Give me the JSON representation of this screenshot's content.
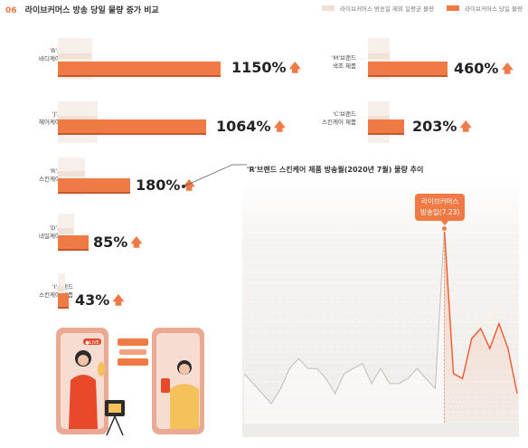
{
  "header": {
    "number": "06",
    "title": "라이브커머스 방송 당일 물량 증가 비교"
  },
  "legend": {
    "prev_label": "라이브커머스 방송일 제외 일평균 물량",
    "cur_label": "라이브커머스 당일 물량",
    "prev_color": "#f0e0d6",
    "cur_color": "#ef7a45"
  },
  "chart_data": [
    {
      "type": "bar",
      "categories": [
        "'B'브랜드 바디케어 제품",
        "'J'브랜드 헤어케어 제품",
        "'R'브랜드 스킨케어 제품",
        "'D'브랜드 네일케어 제품",
        "'I'브랜드 스킨케어 제품",
        "'M'브랜드 색조 제품",
        "'C'브랜드 스킨케어 제품"
      ],
      "series": [
        {
          "name": "라이브커머스 당일 물량",
          "values": [
            "1150%",
            "1064%",
            "180%",
            "85%",
            "43%",
            "460%",
            "203%"
          ]
        }
      ]
    },
    {
      "type": "area",
      "title": "'R'브랜드 스킨케어 제품 방송월(2020년 7월) 물량 추이",
      "x": [
        1,
        2,
        3,
        4,
        5,
        6,
        7,
        8,
        9,
        10,
        11,
        12,
        13,
        14,
        15,
        16,
        17,
        18,
        19,
        20,
        21,
        22,
        23,
        24,
        25,
        26,
        27,
        28,
        29,
        30,
        31
      ],
      "y": [
        10,
        8,
        6,
        4,
        7,
        11,
        13,
        11,
        11,
        9,
        6,
        10,
        11,
        12,
        8,
        11,
        8,
        8,
        9,
        11,
        9,
        7,
        39,
        10,
        9,
        17,
        19,
        15,
        20,
        15,
        6
      ],
      "annotation": {
        "x": 23,
        "text_line1": "라이브커머스",
        "text_line2": "방송일(7.23)"
      }
    }
  ],
  "left_bars": [
    {
      "brand_line1": "'B'브랜드",
      "brand_line2": "바디케어 제품",
      "pct": "1150%",
      "frac": 1.0
    },
    {
      "brand_line1": "'J'브랜드",
      "brand_line2": "헤어케어 제품",
      "pct": "1064%",
      "frac": 0.925
    },
    {
      "brand_line1": "'R'브랜드",
      "brand_line2": "스킨케어 제품",
      "pct": "180%",
      "frac": 0.46
    },
    {
      "brand_line1": "'D'브랜드",
      "brand_line2": "네일케어 제품",
      "pct": "85%",
      "frac": 0.2
    },
    {
      "brand_line1": "'I'브랜드",
      "brand_line2": "스킨케어 제품",
      "pct": "43%",
      "frac": 0.05
    }
  ],
  "right_bars": [
    {
      "brand_line1": "'M'브랜드",
      "brand_line2": "색조 제품",
      "pct": "460%",
      "frac": 0.95
    },
    {
      "brand_line1": "'C'브랜드",
      "brand_line2": "스킨케어 제품",
      "pct": "203%",
      "frac": 0.42
    }
  ],
  "illustration": {
    "live_badge": "●LIVE"
  }
}
